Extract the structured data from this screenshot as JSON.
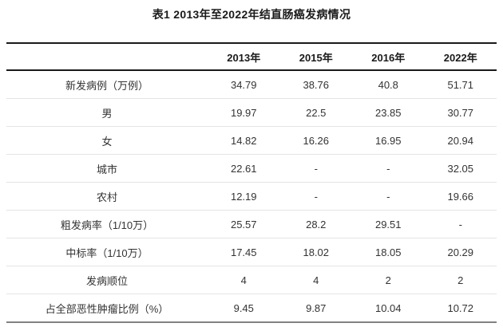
{
  "title": "表1 2013年至2022年结直肠癌发病情况",
  "table": {
    "columns": [
      "",
      "2013年",
      "2015年",
      "2016年",
      "2022年"
    ],
    "rows": [
      {
        "label": "新发病例（万例）",
        "values": [
          "34.79",
          "38.76",
          "40.8",
          "51.71"
        ]
      },
      {
        "label": "男",
        "values": [
          "19.97",
          "22.5",
          "23.85",
          "30.77"
        ]
      },
      {
        "label": "女",
        "values": [
          "14.82",
          "16.26",
          "16.95",
          "20.94"
        ]
      },
      {
        "label": "城市",
        "values": [
          "22.61",
          "-",
          "-",
          "32.05"
        ]
      },
      {
        "label": "农村",
        "values": [
          "12.19",
          "-",
          "-",
          "19.66"
        ]
      },
      {
        "label": "粗发病率（1/10万）",
        "values": [
          "25.57",
          "28.2",
          "29.51",
          "-"
        ]
      },
      {
        "label": "中标率（1/10万）",
        "values": [
          "17.45",
          "18.02",
          "18.05",
          "20.29"
        ]
      },
      {
        "label": "发病顺位",
        "values": [
          "4",
          "4",
          "2",
          "2"
        ]
      },
      {
        "label": "占全部恶性肿瘤比例（%）",
        "values": [
          "9.45",
          "9.87",
          "10.04",
          "10.72"
        ]
      }
    ]
  },
  "colors": {
    "background": "#ffffff",
    "heavy_rule": "#1a1a1a",
    "light_rule": "#e4e4e4",
    "bottom_rule": "#828282",
    "heading_text": "#1a1a1a",
    "body_text": "#333333"
  }
}
